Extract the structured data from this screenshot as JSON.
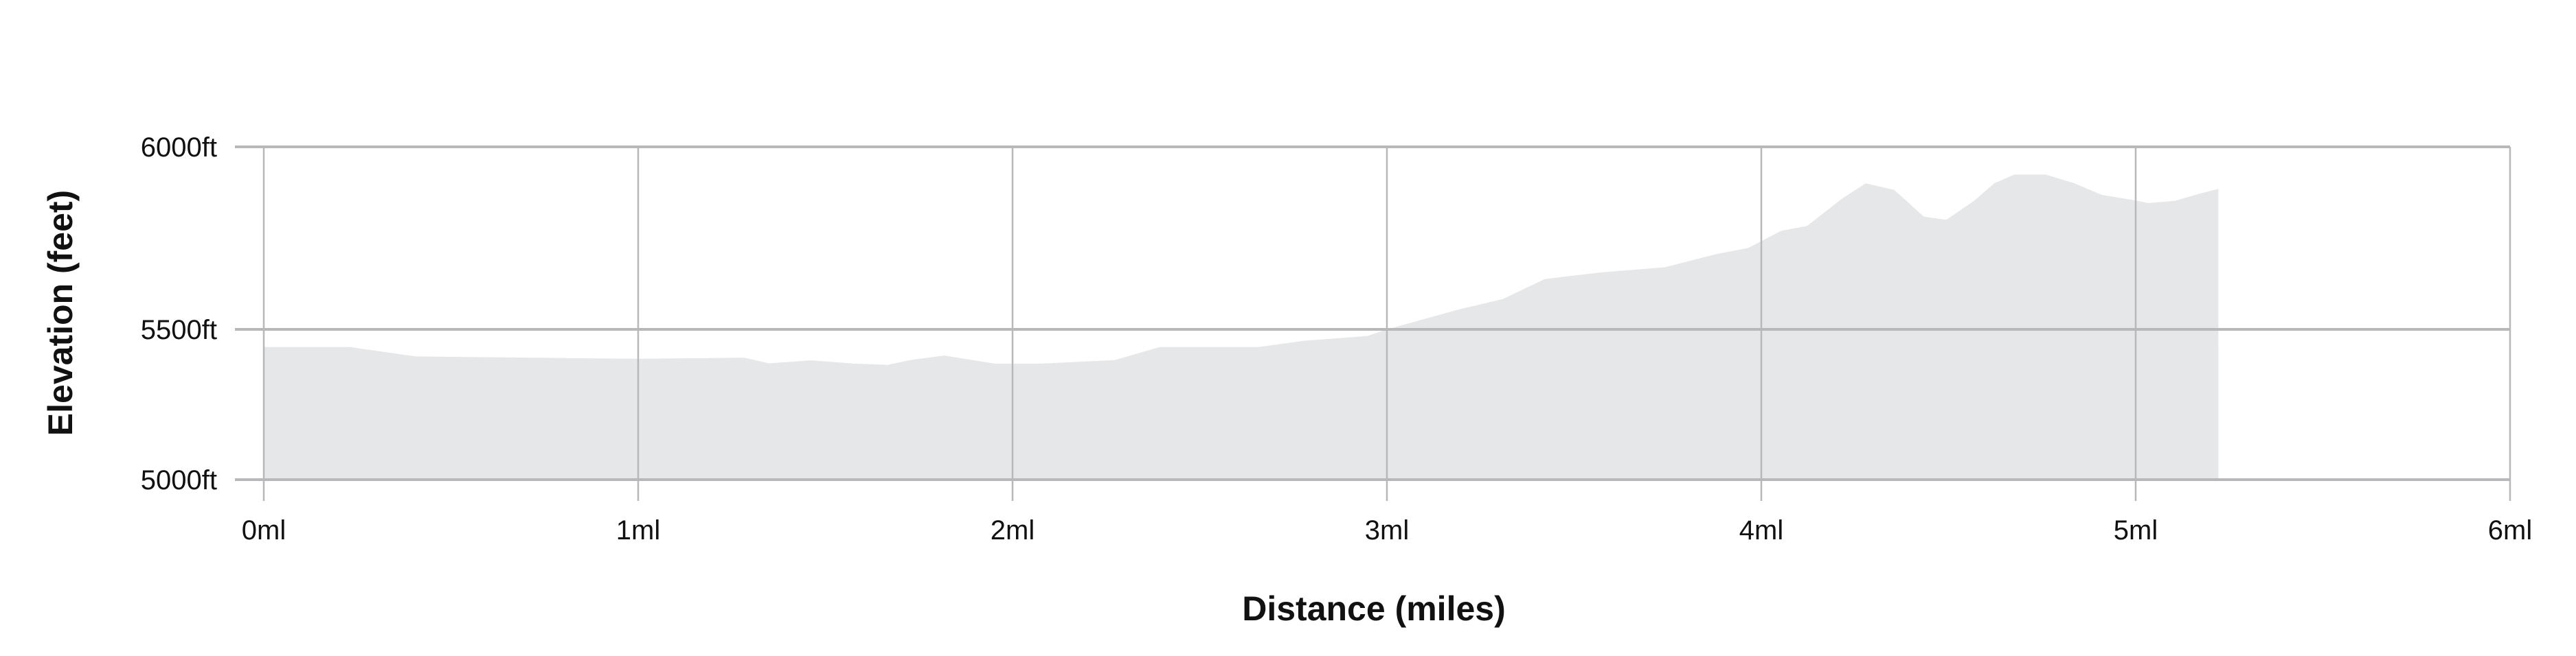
{
  "chart_data": {
    "type": "area",
    "title": "",
    "xlabel": "Distance (miles)",
    "ylabel": "Elevation (feet)",
    "xlim": [
      0,
      6
    ],
    "ylim": [
      5000,
      6000
    ],
    "grid": true,
    "x_ticks": [
      0,
      1,
      2,
      3,
      4,
      5,
      6
    ],
    "x_tick_labels": [
      "0ml",
      "1ml",
      "2ml",
      "3ml",
      "4ml",
      "5ml",
      "6ml"
    ],
    "y_ticks": [
      5000,
      5500,
      6000
    ],
    "y_tick_labels": [
      "5000ft",
      "5500ft",
      "6000ft"
    ],
    "fill_color": "#e6e7e9",
    "grid_color": "#b8b8bb",
    "series": [
      {
        "x": [
          0,
          0.23,
          0.405,
          1.0,
          1.283,
          1.35,
          1.463,
          1.576,
          1.667,
          1.726,
          1.818,
          1.952,
          2.076,
          2.273,
          2.393,
          2.657,
          2.778,
          2.948,
          3.0,
          3.194,
          3.31,
          3.422,
          3.571,
          3.741,
          3.883,
          3.965,
          4.053,
          4.122,
          4.218,
          4.279,
          4.355,
          4.434,
          4.494,
          4.567,
          4.622,
          4.676,
          4.759,
          4.835,
          4.908,
          5.0,
          5.034,
          5.104,
          5.168,
          5.221
        ],
        "y": [
          5441,
          5441,
          5410,
          5402,
          5406,
          5387,
          5397,
          5386,
          5382,
          5398,
          5413,
          5386,
          5386,
          5398,
          5441,
          5441,
          5462,
          5478,
          5500,
          5555,
          5583,
          5638,
          5656,
          5670,
          5707,
          5723,
          5770,
          5783,
          5860,
          5900,
          5882,
          5809,
          5800,
          5851,
          5900,
          5924,
          5924,
          5901,
          5869,
          5853,
          5846,
          5852,
          5871,
          5885
        ]
      }
    ]
  }
}
